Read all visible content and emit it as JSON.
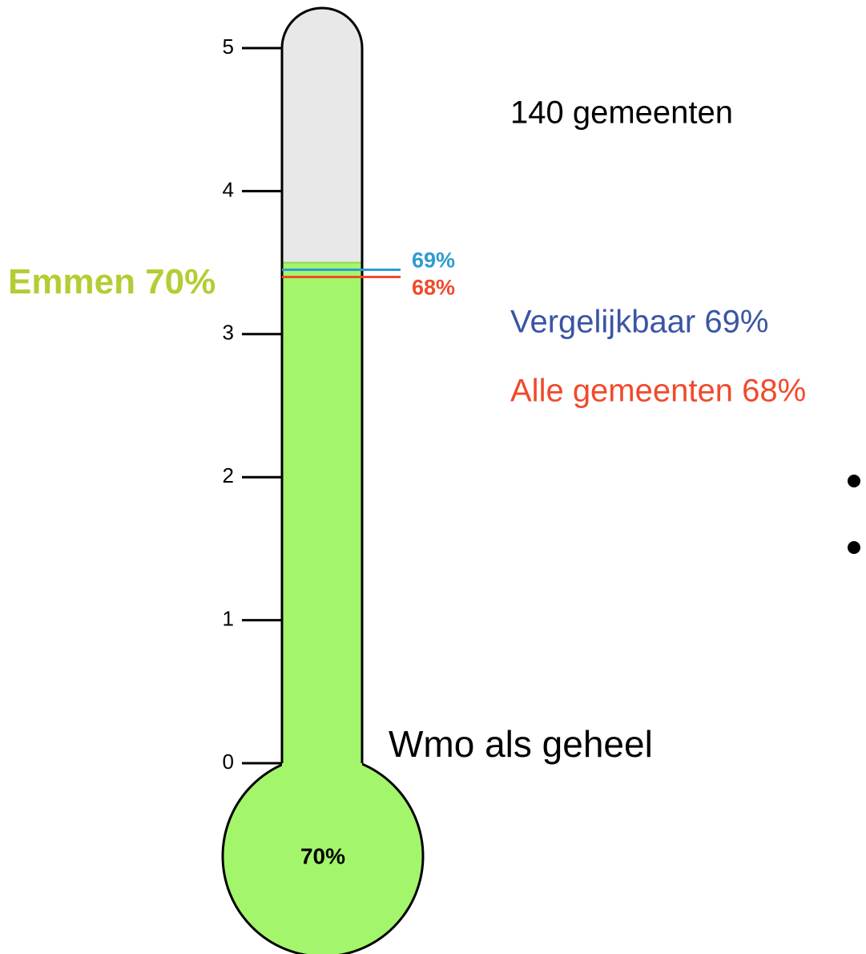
{
  "chart_data": {
    "type": "thermometer",
    "title": "Wmo als geheel",
    "subtitle": "140 gemeenten",
    "ylim": [
      0,
      5
    ],
    "yticks": [
      0,
      1,
      2,
      3,
      4,
      5
    ],
    "series": [
      {
        "name": "Emmen 70%",
        "color": "#a3f56b",
        "text_color": "#b5cc33",
        "values": [
          3.5
        ],
        "value_labels": [
          "70%"
        ]
      },
      {
        "name": "Vergelijkbaar 69%",
        "color": "#2e9bd2",
        "text_color": "#3a55a5",
        "values": [
          3.45
        ],
        "value_labels": [
          "69%"
        ]
      },
      {
        "name": "Alle gemeenten 68%",
        "color": "#f04a2c",
        "text_color": "#f04a2c",
        "values": [
          3.4
        ],
        "value_labels": [
          "68%"
        ]
      }
    ]
  }
}
